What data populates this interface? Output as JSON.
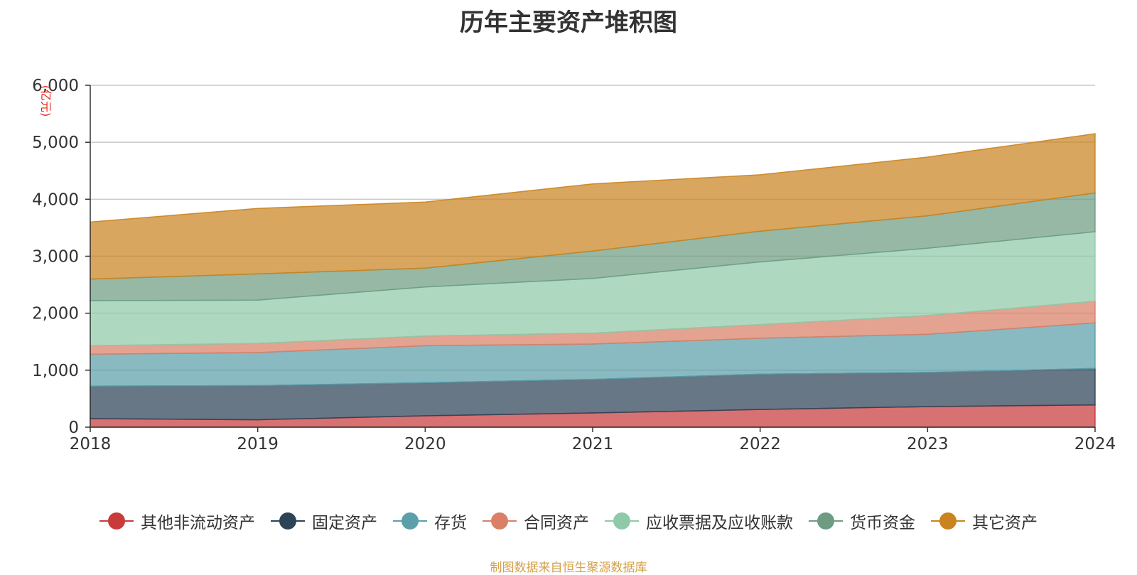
{
  "chart_data": {
    "type": "area",
    "stacked": true,
    "title": "历年主要资产堆积图",
    "y_unit": "(亿元)",
    "x": [
      "2018",
      "2019",
      "2020",
      "2021",
      "2022",
      "2023",
      "2024"
    ],
    "ylim": [
      0,
      6000
    ],
    "yticks": [
      "0",
      "1,000",
      "2,000",
      "3,000",
      "4,000",
      "5,000",
      "6,000"
    ],
    "ytick_values": [
      0,
      1000,
      2000,
      3000,
      4000,
      5000,
      6000
    ],
    "grid": true,
    "legend_position": "bottom",
    "series": [
      {
        "name": "其他非流动资产",
        "color": "#c93a3a",
        "values": [
          150,
          130,
          200,
          250,
          310,
          360,
          390
        ]
      },
      {
        "name": "固定资产",
        "color": "#2d4356",
        "values": [
          570,
          600,
          580,
          590,
          620,
          600,
          640
        ]
      },
      {
        "name": "存货",
        "color": "#5b9faa",
        "values": [
          560,
          580,
          650,
          620,
          630,
          670,
          800
        ]
      },
      {
        "name": "合同资产",
        "color": "#d98066",
        "values": [
          150,
          160,
          170,
          190,
          240,
          330,
          380
        ]
      },
      {
        "name": "应收票据及应收账款",
        "color": "#8fcaa8",
        "values": [
          790,
          760,
          860,
          960,
          1100,
          1180,
          1220
        ]
      },
      {
        "name": "货币资金",
        "color": "#6d9c82",
        "values": [
          380,
          460,
          330,
          480,
          540,
          570,
          680
        ]
      },
      {
        "name": "其它资产",
        "color": "#c98420",
        "values": [
          1000,
          1150,
          1160,
          1180,
          990,
          1030,
          1040
        ]
      }
    ]
  },
  "source": "制图数据来自恒生聚源数据库"
}
